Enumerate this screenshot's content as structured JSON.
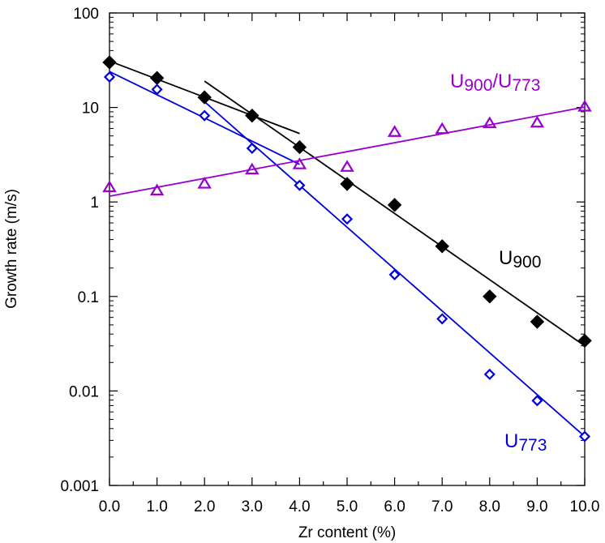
{
  "chart_data": {
    "type": "scatter",
    "title": "",
    "xlabel": "Zr content (%)",
    "ylabel": "Growth rate (m/s)",
    "xlim": [
      0,
      10
    ],
    "ylim": [
      0.001,
      100
    ],
    "yscale": "log",
    "grid": false,
    "x_ticks": [
      "0.0",
      "1.0",
      "2.0",
      "3.0",
      "4.0",
      "5.0",
      "6.0",
      "7.0",
      "8.0",
      "9.0",
      "10.0"
    ],
    "y_ticks": [
      "0.001",
      "0.01",
      "0.1",
      "1",
      "10",
      "100"
    ],
    "series": [
      {
        "name": "U900",
        "label_main": "U",
        "label_sub": "900",
        "color": "#000000",
        "marker": "filled-diamond",
        "x": [
          0,
          1,
          2,
          3,
          4,
          5,
          6,
          7,
          8,
          9,
          10
        ],
        "y": [
          30,
          20.5,
          12.8,
          8.2,
          3.8,
          1.55,
          0.93,
          0.34,
          0.1,
          0.054,
          0.034
        ],
        "fit_lines": [
          {
            "x": [
              0,
              4
            ],
            "y": [
              31,
              5.3
            ]
          },
          {
            "x": [
              2,
              10
            ],
            "y": [
              19,
              0.03
            ]
          }
        ]
      },
      {
        "name": "U773",
        "label_main": "U",
        "label_sub": "773",
        "color": "#0000dd",
        "marker": "open-diamond",
        "x": [
          0,
          1,
          2,
          3,
          4,
          5,
          6,
          7,
          8,
          9,
          10
        ],
        "y": [
          21,
          15.5,
          8.2,
          3.7,
          1.5,
          0.66,
          0.17,
          0.058,
          0.015,
          0.0079,
          0.0033
        ],
        "fit_lines": [
          {
            "x": [
              0,
              4
            ],
            "y": [
              24,
              2.5
            ]
          },
          {
            "x": [
              2,
              10
            ],
            "y": [
              11.5,
              0.0033
            ]
          }
        ]
      },
      {
        "name": "U900/U773",
        "label_main": "U",
        "label_sub": "900",
        "label_sep": "/U",
        "label_sub2": "773",
        "color": "#9900cc",
        "marker": "open-triangle",
        "x": [
          0,
          1,
          2,
          3,
          4,
          5,
          6,
          7,
          8,
          9,
          10
        ],
        "y": [
          1.43,
          1.32,
          1.56,
          2.2,
          2.5,
          2.35,
          5.5,
          5.9,
          6.8,
          6.9,
          10.2
        ],
        "fit_lines": [
          {
            "x": [
              0,
              10
            ],
            "y": [
              1.15,
              10.1
            ]
          }
        ]
      }
    ]
  }
}
